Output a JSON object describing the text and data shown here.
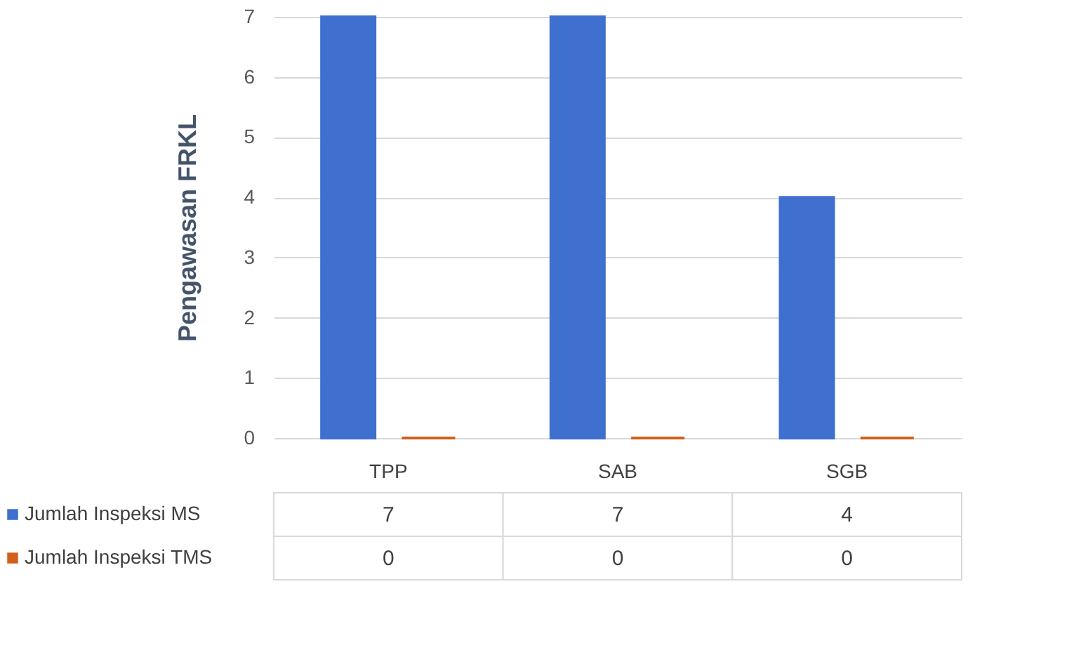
{
  "chart_data": {
    "type": "bar",
    "ylabel": "Pengawasan FRKL",
    "categories": [
      "TPP",
      "SAB",
      "SGB"
    ],
    "series": [
      {
        "name": "Jumlah Inspeksi MS",
        "color": "#3f6fcf",
        "values": [
          7,
          7,
          4
        ]
      },
      {
        "name": "Jumlah Inspeksi TMS",
        "color": "#d2601a",
        "values": [
          0,
          0,
          0
        ]
      }
    ],
    "ylim": [
      0,
      7
    ],
    "yticks": [
      0,
      1,
      2,
      3,
      4,
      5,
      6,
      7
    ],
    "grid": "y",
    "legend": "bottom",
    "data_labels": true
  }
}
